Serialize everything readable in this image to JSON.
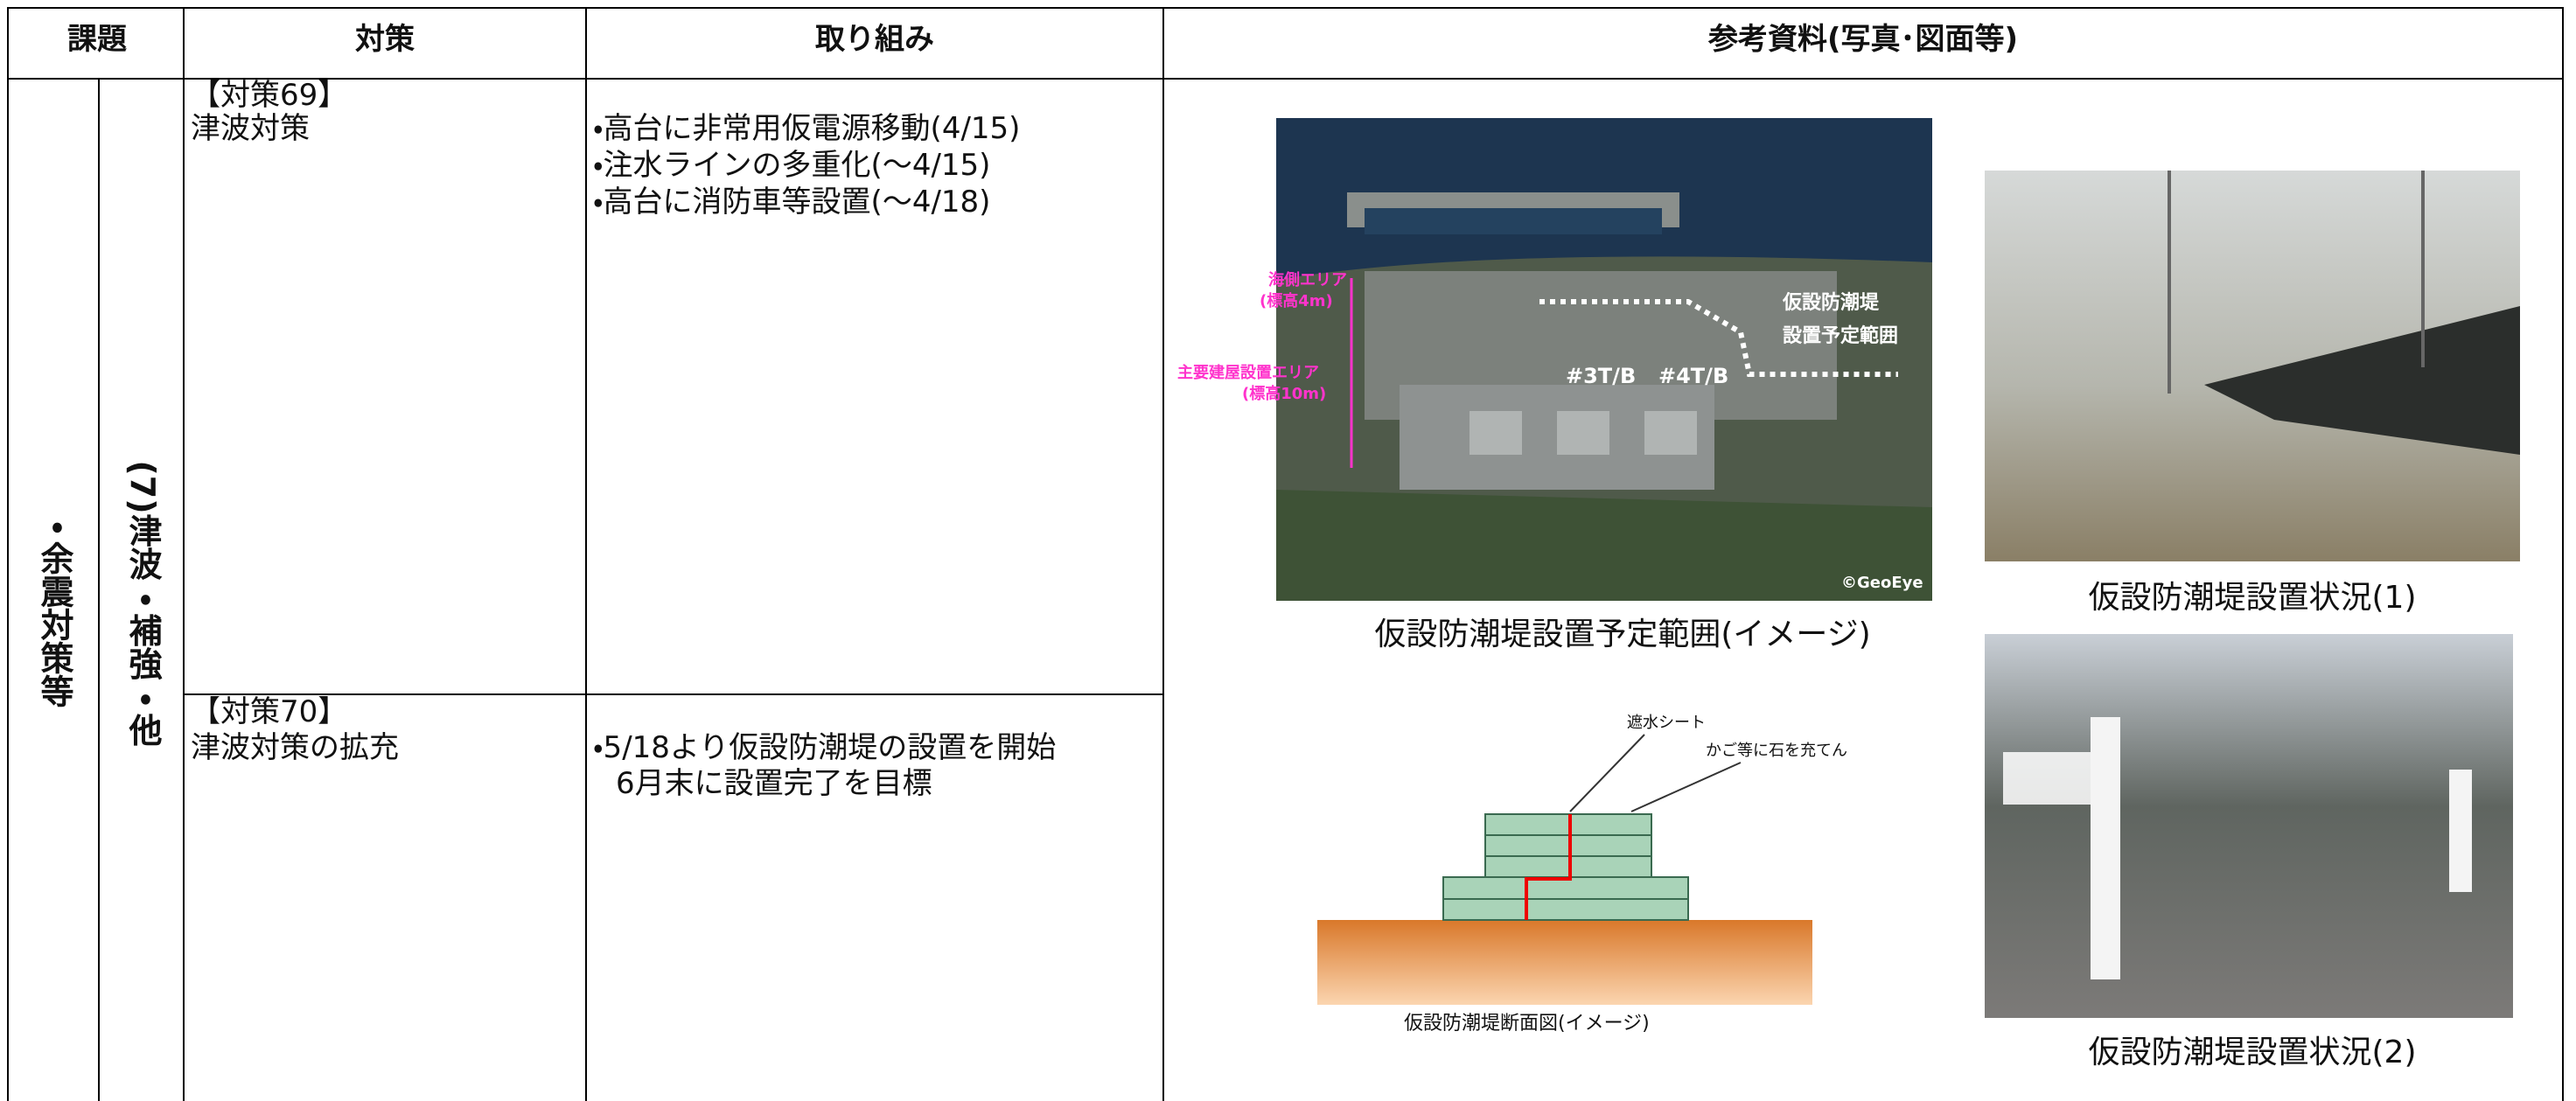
{
  "header": {
    "columns": [
      "課題",
      "対策",
      "取り組み",
      "参考資料(写真･図面等)"
    ]
  },
  "category": {
    "major": "・余震対策等",
    "minor": "(7)津波・補強・他"
  },
  "rows": [
    {
      "measure_no": "【対策69】",
      "measure": "津波対策",
      "actions": [
        "・高台に非常用仮電源移動(4/15)",
        "・注水ラインの多重化(～4/15)",
        "・高台に消防車等設置(～4/18)"
      ]
    },
    {
      "measure_no": "【対策70】",
      "measure": "津波対策の拡充",
      "actions": [
        "・5/18より仮設防潮堤の設置を開始",
        "6月末に設置完了を目標"
      ]
    }
  ],
  "figures": {
    "aerial": {
      "caption": "仮設防潮堤設置予定範囲(イメージ)",
      "sea_area": "海側エリア",
      "sea_height": "(標高4m)",
      "main_area": "主要建屋設置エリア",
      "main_height": "(標高10m)",
      "range_1": "仮設防潮堤",
      "range_2": "設置予定範囲",
      "unit3": "#3T/B",
      "unit4": "#4T/B",
      "credit": "©GeoEye"
    },
    "photo1": {
      "caption": "仮設防潮堤設置状況(1)"
    },
    "photo2": {
      "caption": "仮設防潮堤設置状況(2)"
    },
    "section": {
      "caption": "仮設防潮堤断面図(イメージ)",
      "sheet": "遮水シート",
      "stones": "かご等に石を充てん"
    }
  }
}
